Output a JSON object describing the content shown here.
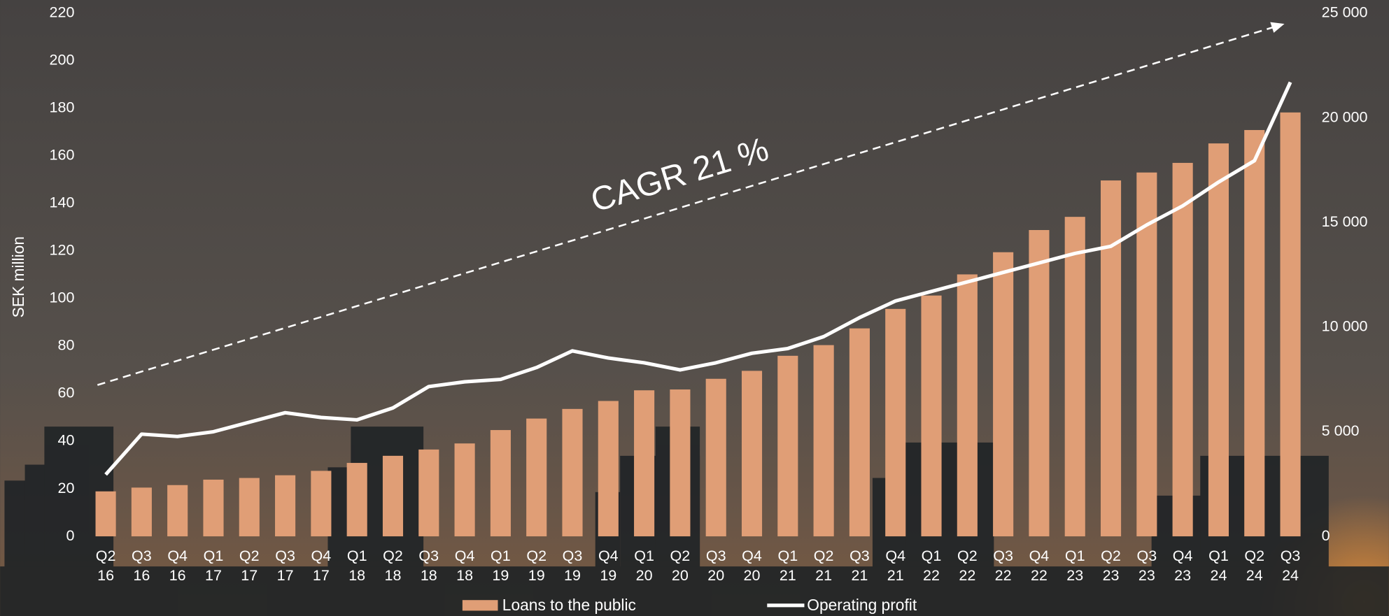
{
  "chart_data": {
    "type": "bar-line",
    "annotation": "CAGR 21 %",
    "y_label": "SEK million",
    "categories": [
      "Q2\n16",
      "Q3\n16",
      "Q4\n16",
      "Q1\n17",
      "Q2\n17",
      "Q3\n17",
      "Q4\n17",
      "Q1\n18",
      "Q2\n18",
      "Q3\n18",
      "Q4\n18",
      "Q1\n19",
      "Q2\n19",
      "Q3\n19",
      "Q4\n19",
      "Q1\n20",
      "Q2\n20",
      "Q3\n20",
      "Q4\n20",
      "Q1\n21",
      "Q2\n21",
      "Q3\n21",
      "Q4\n21",
      "Q1\n22",
      "Q2\n22",
      "Q3\n22",
      "Q4\n22",
      "Q1\n23",
      "Q2\n23",
      "Q3\n23",
      "Q4\n23",
      "Q1\n24",
      "Q2\n24",
      "Q3\n24"
    ],
    "series": [
      {
        "name": "Loans to the public",
        "type": "bar",
        "axis": "y2",
        "color": "#e09e76",
        "values": [
          2150,
          2330,
          2450,
          2710,
          2790,
          2920,
          3130,
          3510,
          3850,
          4150,
          4440,
          5080,
          5630,
          6090,
          6470,
          6980,
          7020,
          7530,
          7910,
          8630,
          9140,
          9940,
          10870,
          11510,
          12520,
          13580,
          14640,
          15270,
          17010,
          17390,
          17850,
          18780,
          19420,
          20260
        ]
      },
      {
        "name": "Operating profit",
        "type": "line",
        "color": "#ffffff",
        "values": [
          26,
          43,
          42,
          44,
          48,
          52,
          50,
          49,
          54,
          63,
          65,
          66,
          71,
          78,
          75,
          73,
          70,
          73,
          77,
          79,
          84,
          92,
          99,
          103,
          107,
          111,
          115,
          119,
          122,
          131,
          139,
          149,
          158,
          191
        ]
      }
    ],
    "ylim": [
      0,
      220
    ],
    "yticks": [
      0,
      20,
      40,
      60,
      80,
      100,
      120,
      140,
      160,
      180,
      200,
      220
    ],
    "y2lim": [
      0,
      25000
    ],
    "y2ticks": [
      0,
      {
        "value": 5000,
        "label": "5 000"
      },
      {
        "value": 10000,
        "label": "10 000"
      },
      {
        "value": 15000,
        "label": "15 000"
      },
      {
        "value": 20000,
        "label": "20 000"
      },
      {
        "value": 25000,
        "label": "25 000"
      }
    ]
  }
}
